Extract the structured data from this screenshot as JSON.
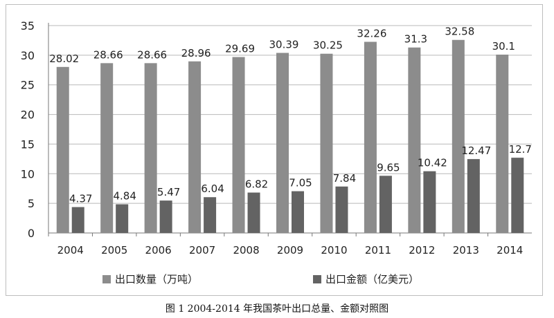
{
  "chart_data": {
    "type": "bar",
    "categories": [
      "2004",
      "2005",
      "2006",
      "2007",
      "2008",
      "2009",
      "2010",
      "2011",
      "2012",
      "2013",
      "2014"
    ],
    "series": [
      {
        "name": "出口数量（万吨）",
        "values": [
          28.02,
          28.66,
          28.66,
          28.96,
          29.69,
          30.39,
          30.25,
          32.26,
          31.3,
          32.58,
          30.1
        ],
        "color": "#8c8c8c"
      },
      {
        "name": "出口金额（亿美元）",
        "values": [
          4.37,
          4.84,
          5.47,
          6.04,
          6.82,
          7.05,
          7.84,
          9.65,
          10.42,
          12.47,
          12.7
        ],
        "color": "#636363"
      }
    ],
    "data_labels": {
      "s0": [
        "28.02",
        "28.66",
        "28.66",
        "28.96",
        "29.69",
        "30.39",
        "30.25",
        "32.26",
        "31.3",
        "32.58",
        "30.1"
      ],
      "s1": [
        "4.37",
        "4.84",
        "5.47",
        "6.04",
        "6.82",
        "7.05",
        "7.84",
        "9.65",
        "10.42",
        "12.47",
        "12.7"
      ]
    },
    "yticks": [
      "0",
      "5",
      "10",
      "15",
      "20",
      "25",
      "30",
      "35"
    ],
    "ylim": [
      0,
      35
    ],
    "legend": "bottom",
    "grid": true
  },
  "caption": "图 1    2004-2014 年我国茶叶出口总量、金额对照图"
}
